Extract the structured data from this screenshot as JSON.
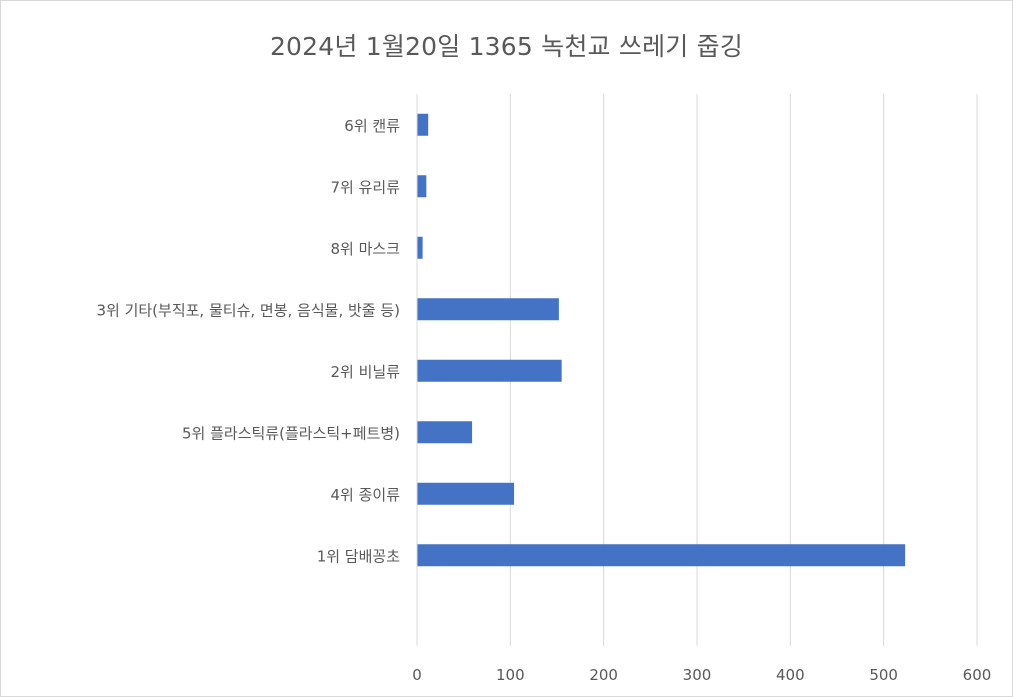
{
  "chart_data": {
    "type": "bar",
    "orientation": "horizontal",
    "title": "2024년 1월20일 1365 녹천교 쓰레기 줍깅",
    "categories": [
      "6위 캔류",
      "7위 유리류",
      "8위 마스크",
      "3위 기타(부직포, 물티슈, 면봉, 음식물, 밧줄 등)",
      "2위 비닐류",
      "5위 플라스틱류(플라스틱+페트병)",
      "4위 종이류",
      "1위 담배꽁초"
    ],
    "values": [
      12,
      10,
      6,
      152,
      155,
      59,
      104,
      523
    ],
    "xlim": [
      0,
      600
    ],
    "xticks": [
      0,
      100,
      200,
      300,
      400,
      500,
      600
    ],
    "xlabel": "",
    "ylabel": "",
    "grid": true,
    "legend": "none",
    "bar_color": "#4472c4",
    "grid_color": "#d9d9d9"
  }
}
